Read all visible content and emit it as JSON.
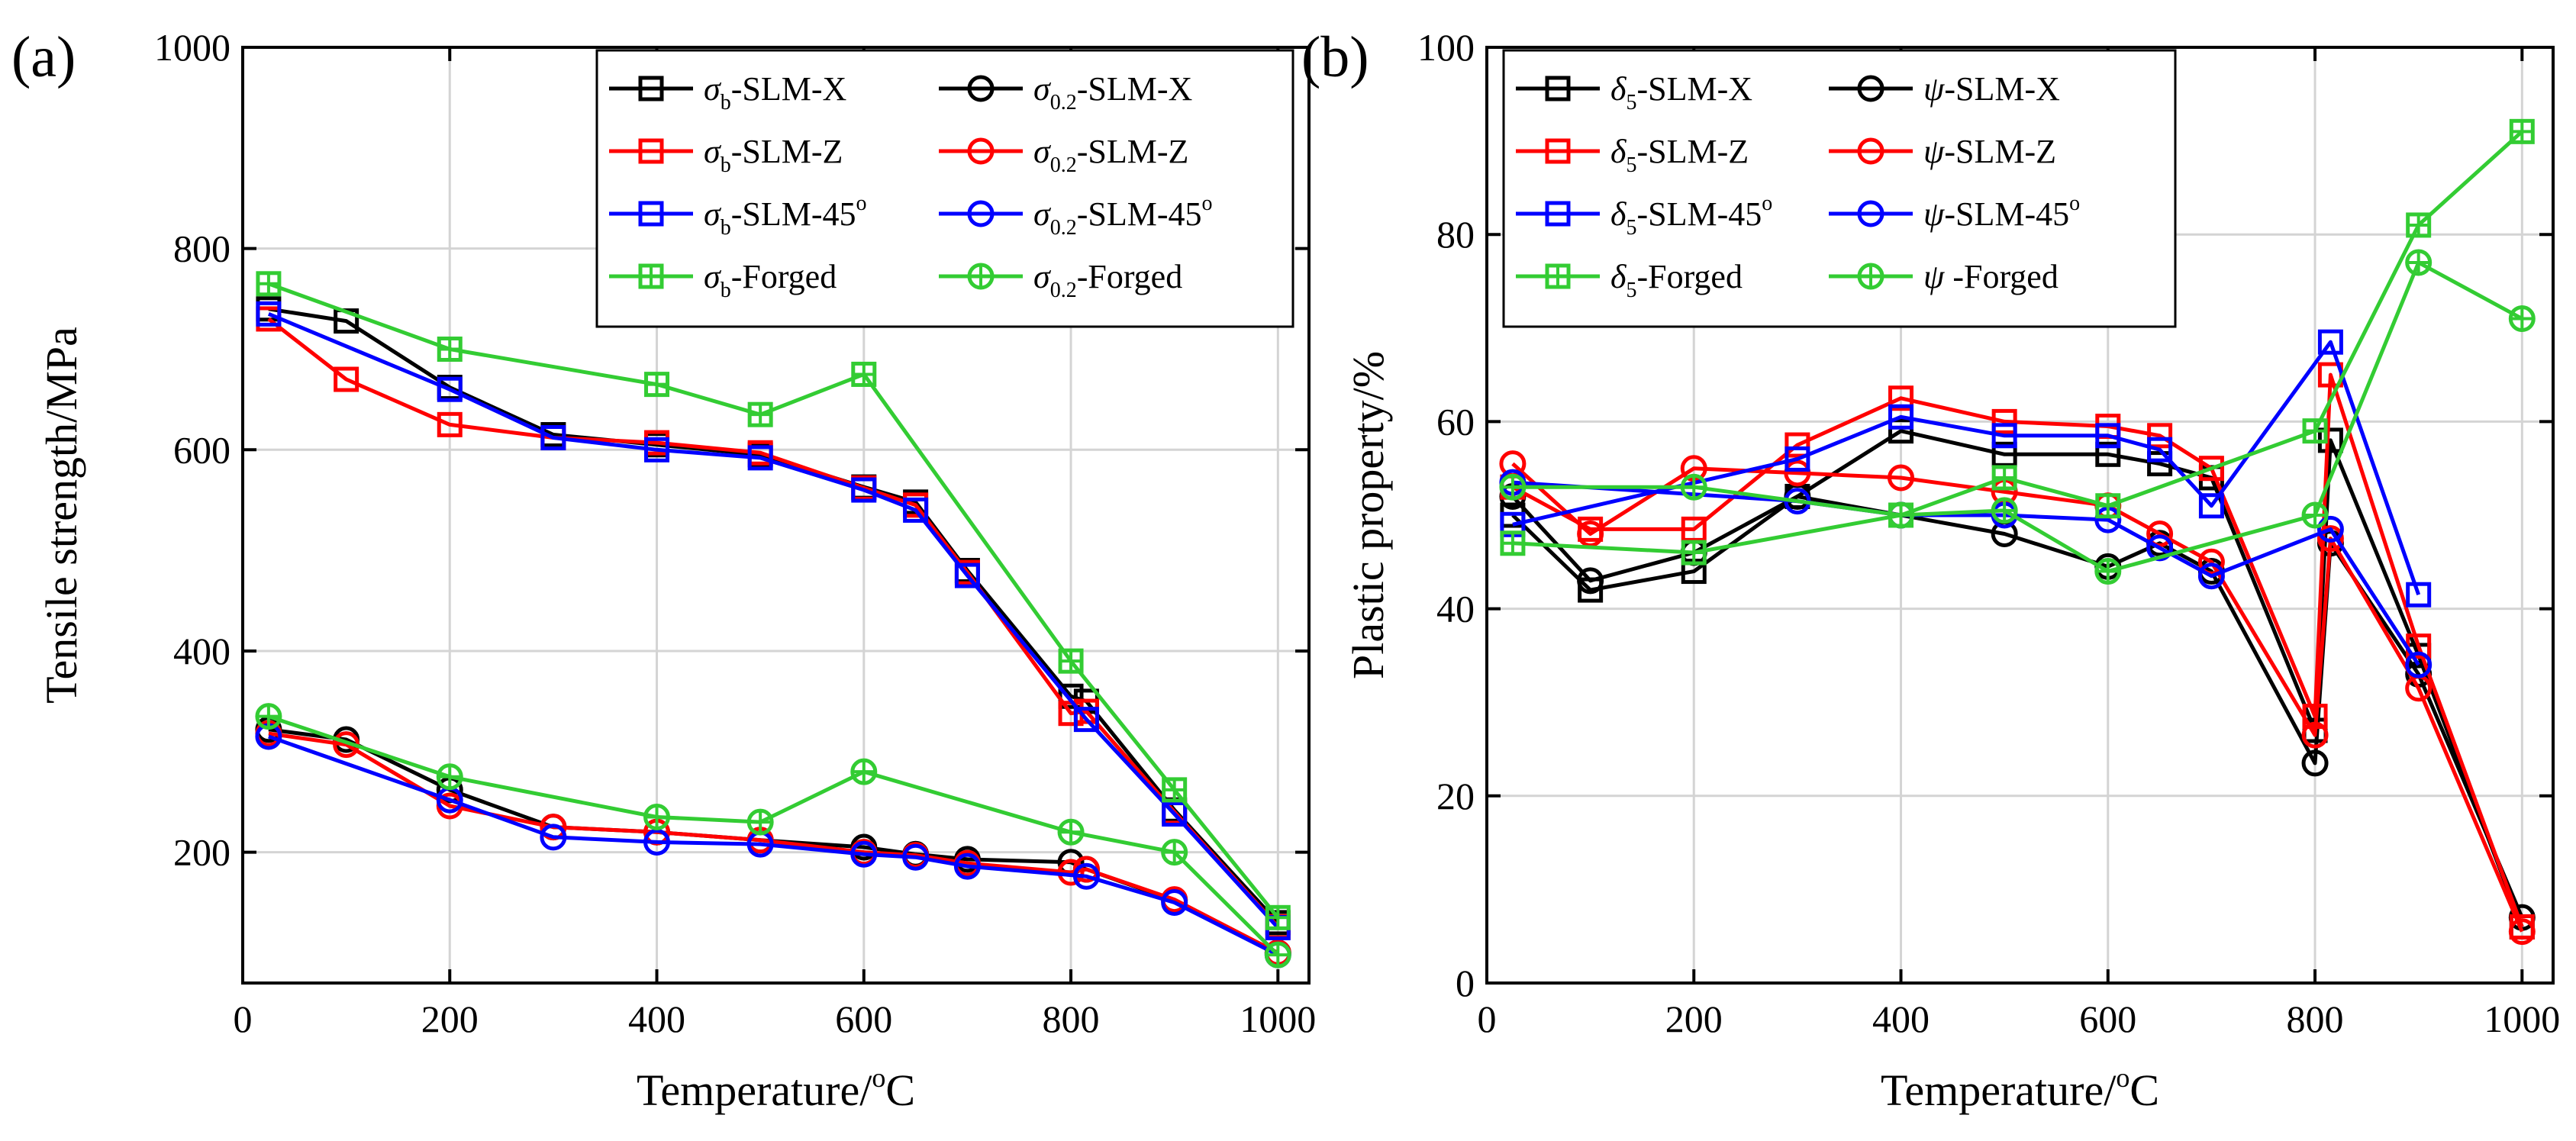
{
  "chart_data": [
    {
      "panel_label": "(a)",
      "type": "line",
      "xlabel_base": "Temperature/",
      "xlabel_sup": "o",
      "xlabel_tail": "C",
      "ylabel": "Tensile strength/MPa",
      "xlim": [
        0,
        1030
      ],
      "ylim": [
        70,
        1000
      ],
      "xticks": [
        0,
        200,
        400,
        600,
        800,
        1000
      ],
      "yticks": [
        200,
        400,
        600,
        800,
        1000
      ],
      "grid": true,
      "legend_position": "top-right",
      "series": [
        {
          "name": "σb-SLM-X",
          "symbol": "σ",
          "sub": "b",
          "suffix": "-SLM-X",
          "marker": "square",
          "color": "#000000",
          "x": [
            25,
            100,
            200,
            300,
            400,
            500,
            600,
            650,
            700,
            800,
            815,
            900,
            1000
          ],
          "y": [
            740,
            728,
            662,
            615,
            605,
            595,
            563,
            548,
            480,
            355,
            350,
            242,
            130
          ]
        },
        {
          "name": "σ0.2-SLM-X",
          "symbol": "σ",
          "sub": "0.2",
          "suffix": "-SLM-X",
          "marker": "circle",
          "color": "#000000",
          "x": [
            25,
            100,
            200,
            300,
            400,
            500,
            600,
            650,
            700,
            800,
            815,
            900,
            1000
          ],
          "y": [
            322,
            312,
            262,
            225,
            220,
            212,
            205,
            198,
            193,
            190,
            183,
            152,
            100
          ]
        },
        {
          "name": "σb-SLM-Z",
          "symbol": "σ",
          "sub": "b",
          "suffix": "-SLM-Z",
          "marker": "square",
          "color": "#ff0000",
          "x": [
            25,
            100,
            200,
            300,
            400,
            500,
            600,
            650,
            700,
            800,
            815,
            900,
            1000
          ],
          "y": [
            730,
            670,
            625,
            612,
            607,
            597,
            562,
            545,
            478,
            338,
            340,
            240,
            126
          ]
        },
        {
          "name": "σ0.2-SLM-Z",
          "symbol": "σ",
          "sub": "0.2",
          "suffix": "-SLM-Z",
          "marker": "circle",
          "color": "#ff0000",
          "x": [
            25,
            100,
            200,
            300,
            400,
            500,
            600,
            650,
            700,
            800,
            815,
            900,
            1000
          ],
          "y": [
            318,
            307,
            246,
            225,
            220,
            212,
            200,
            197,
            189,
            180,
            183,
            153,
            100
          ]
        },
        {
          "name": "σb-SLM-45o",
          "symbol": "σ",
          "sub": "b",
          "suffix": "-SLM-45",
          "sup": "o",
          "marker": "square",
          "color": "#0000ff",
          "x": [
            25,
            200,
            300,
            400,
            500,
            600,
            650,
            700,
            815,
            900,
            1000
          ],
          "y": [
            735,
            660,
            612,
            600,
            592,
            560,
            540,
            475,
            332,
            238,
            125
          ]
        },
        {
          "name": "σ0.2-SLM-45o",
          "symbol": "σ",
          "sub": "0.2",
          "suffix": "-SLM-45",
          "sup": "o",
          "marker": "circle",
          "color": "#0000ff",
          "x": [
            25,
            200,
            300,
            400,
            500,
            600,
            650,
            700,
            815,
            900,
            1000
          ],
          "y": [
            315,
            252,
            215,
            210,
            208,
            198,
            195,
            186,
            176,
            150,
            98
          ]
        },
        {
          "name": "σb-Forged",
          "symbol": "σ",
          "sub": "b",
          "suffix": "-Forged",
          "marker": "square-plus",
          "color": "#33cc33",
          "x": [
            25,
            200,
            400,
            500,
            600,
            800,
            900,
            1000
          ],
          "y": [
            765,
            700,
            665,
            635,
            675,
            390,
            262,
            135
          ]
        },
        {
          "name": "σ0.2-Forged",
          "symbol": "σ",
          "sub": "0.2",
          "suffix": "-Forged",
          "marker": "circle-plus",
          "color": "#33cc33",
          "x": [
            25,
            200,
            400,
            500,
            600,
            800,
            900,
            1000
          ],
          "y": [
            335,
            275,
            235,
            230,
            280,
            220,
            200,
            98
          ]
        }
      ]
    },
    {
      "panel_label": "(b)",
      "type": "line",
      "xlabel_base": "Temperature/",
      "xlabel_sup": "o",
      "xlabel_tail": "C",
      "ylabel": "Plastic property/%",
      "xlim": [
        0,
        1030
      ],
      "ylim": [
        0,
        100
      ],
      "xticks": [
        0,
        200,
        400,
        600,
        800,
        1000
      ],
      "yticks": [
        0,
        20,
        40,
        60,
        80,
        100
      ],
      "grid": true,
      "legend_position": "top-left",
      "series": [
        {
          "name": "δ5-SLM-X",
          "symbol": "δ",
          "sub": "5",
          "suffix": "-SLM-X",
          "marker": "square",
          "color": "#000000",
          "x": [
            25,
            100,
            200,
            300,
            400,
            500,
            600,
            650,
            700,
            800,
            815,
            900,
            1000
          ],
          "y": [
            50,
            42,
            44,
            52,
            59,
            56.5,
            56.5,
            55.5,
            54,
            27,
            58,
            35,
            6
          ]
        },
        {
          "name": "ψ-SLM-X",
          "symbol": "ψ",
          "sub": "",
          "suffix": "-SLM-X",
          "marker": "circle",
          "color": "#000000",
          "x": [
            25,
            100,
            200,
            300,
            400,
            500,
            600,
            650,
            700,
            800,
            815,
            900,
            1000
          ],
          "y": [
            52,
            43,
            46,
            52,
            50,
            48,
            44.5,
            47,
            44,
            23.5,
            47,
            33,
            7
          ]
        },
        {
          "name": "δ5-SLM-Z",
          "symbol": "δ",
          "sub": "5",
          "suffix": "-SLM-Z",
          "marker": "square",
          "color": "#ff0000",
          "x": [
            25,
            100,
            200,
            300,
            400,
            500,
            600,
            650,
            700,
            800,
            815,
            900,
            1000
          ],
          "y": [
            53,
            48.5,
            48.5,
            57.5,
            62.5,
            60,
            59.5,
            58.5,
            55,
            28.5,
            65,
            36,
            6
          ]
        },
        {
          "name": "ψ-SLM-Z",
          "symbol": "ψ",
          "sub": "",
          "suffix": "-SLM-Z",
          "marker": "circle",
          "color": "#ff0000",
          "x": [
            25,
            100,
            200,
            300,
            400,
            500,
            600,
            650,
            700,
            800,
            815,
            900,
            1000
          ],
          "y": [
            55.5,
            48,
            55,
            54.5,
            54,
            52.5,
            51,
            48,
            45,
            26.5,
            47.5,
            31.5,
            5.5
          ]
        },
        {
          "name": "δ5-SLM-45o",
          "symbol": "δ",
          "sub": "5",
          "suffix": "-SLM-45",
          "sup": "o",
          "marker": "square",
          "color": "#0000ff",
          "x": [
            25,
            300,
            400,
            500,
            600,
            650,
            700,
            815,
            900
          ],
          "y": [
            49,
            56,
            60.5,
            58.5,
            58.5,
            57,
            51,
            68.5,
            41.5
          ]
        },
        {
          "name": "ψ-SLM-45o",
          "symbol": "ψ",
          "sub": "",
          "suffix": "-SLM-45",
          "sup": "o",
          "marker": "circle",
          "color": "#0000ff",
          "x": [
            25,
            300,
            400,
            500,
            600,
            650,
            700,
            815,
            900
          ],
          "y": [
            53.5,
            51.5,
            50,
            50,
            49.5,
            46.5,
            43.5,
            48.5,
            34
          ]
        },
        {
          "name": "δ5-Forged",
          "symbol": "δ",
          "sub": "5",
          "suffix": "-Forged",
          "marker": "square-plus",
          "color": "#33cc33",
          "x": [
            25,
            200,
            400,
            500,
            600,
            800,
            900,
            1000
          ],
          "y": [
            47,
            46,
            50,
            54,
            51,
            59,
            81,
            91
          ]
        },
        {
          "name": "ψ-Forged",
          "symbol": "ψ",
          "sub": "",
          "suffix": " -Forged",
          "marker": "circle-plus",
          "color": "#33cc33",
          "x": [
            25,
            200,
            400,
            500,
            600,
            800,
            900,
            1000
          ],
          "y": [
            53,
            53,
            50,
            50.5,
            44,
            50,
            77,
            71
          ]
        }
      ]
    }
  ]
}
